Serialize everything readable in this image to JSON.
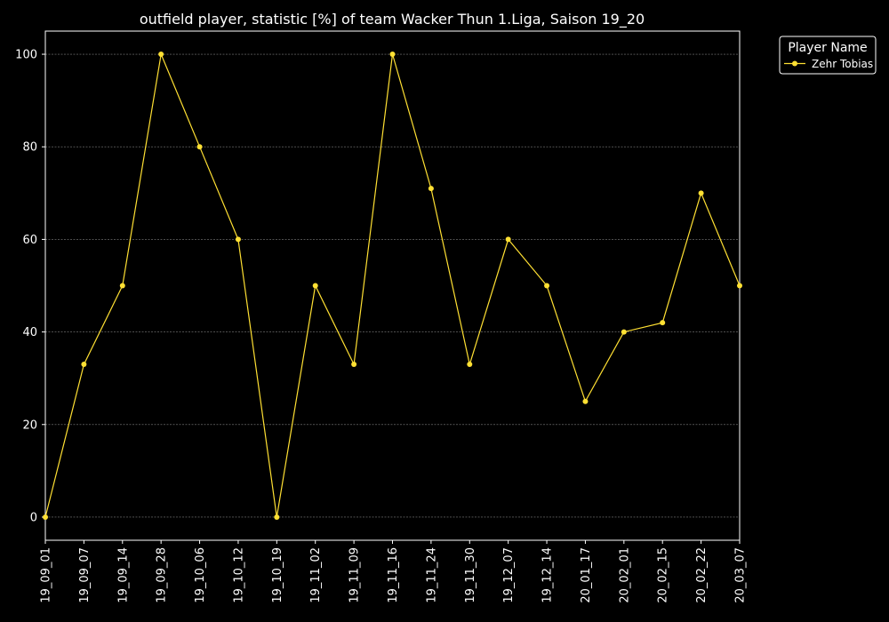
{
  "chart_data": {
    "type": "line",
    "title": "outfield player, statistic [%] of team Wacker Thun 1.Liga, Saison 19_20",
    "xlabel": "",
    "ylabel": "",
    "categories": [
      "19_09_01",
      "19_09_07",
      "19_09_14",
      "19_09_28",
      "19_10_06",
      "19_10_12",
      "19_10_19",
      "19_11_02",
      "19_11_09",
      "19_11_16",
      "19_11_24",
      "19_11_30",
      "19_12_07",
      "19_12_14",
      "20_01_17",
      "20_02_01",
      "20_02_15",
      "20_02_22",
      "20_03_07"
    ],
    "series": [
      {
        "name": "Zehr Tobias",
        "color": "#ffe033",
        "values": [
          0,
          33,
          50,
          100,
          80,
          60,
          0,
          50,
          33,
          100,
          71,
          33,
          60,
          50,
          25,
          40,
          42,
          70,
          50
        ]
      }
    ],
    "ylim": [
      -5,
      105
    ],
    "yticks": [
      0,
      20,
      40,
      60,
      80,
      100
    ],
    "grid": true,
    "legend": {
      "title": "Player Name",
      "placement": "outside-top-right"
    },
    "background": "#000000",
    "foreground": "#ffffff"
  }
}
